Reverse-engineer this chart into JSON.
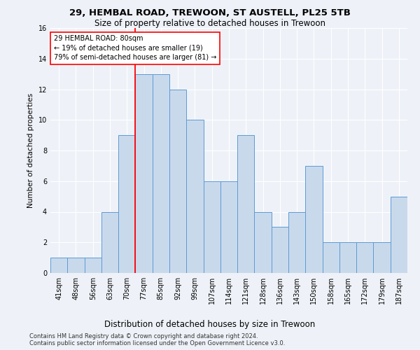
{
  "title1": "29, HEMBAL ROAD, TREWOON, ST AUSTELL, PL25 5TB",
  "title2": "Size of property relative to detached houses in Trewoon",
  "xlabel": "Distribution of detached houses by size in Trewoon",
  "ylabel": "Number of detached properties",
  "categories": [
    "41sqm",
    "48sqm",
    "56sqm",
    "63sqm",
    "70sqm",
    "77sqm",
    "85sqm",
    "92sqm",
    "99sqm",
    "107sqm",
    "114sqm",
    "121sqm",
    "128sqm",
    "136sqm",
    "143sqm",
    "150sqm",
    "158sqm",
    "165sqm",
    "172sqm",
    "179sqm",
    "187sqm"
  ],
  "values": [
    1,
    1,
    1,
    4,
    9,
    13,
    13,
    12,
    10,
    6,
    6,
    9,
    4,
    3,
    4,
    7,
    2,
    2,
    2,
    2,
    5
  ],
  "bar_color": "#c9d9ec",
  "bar_edgecolor": "#5b9bd5",
  "annotation_title": "29 HEMBAL ROAD: 80sqm",
  "annotation_line1": "← 19% of detached houses are smaller (19)",
  "annotation_line2": "79% of semi-detached houses are larger (81) →",
  "vline_x_index": 5,
  "ylim": [
    0,
    16
  ],
  "yticks": [
    0,
    2,
    4,
    6,
    8,
    10,
    12,
    14,
    16
  ],
  "footnote1": "Contains HM Land Registry data © Crown copyright and database right 2024.",
  "footnote2": "Contains public sector information licensed under the Open Government Licence v3.0.",
  "background_color": "#eef2f8",
  "plot_bg_color": "#eef2f8",
  "title1_fontsize": 9.5,
  "title2_fontsize": 8.5,
  "xlabel_fontsize": 8.5,
  "ylabel_fontsize": 7.5,
  "tick_fontsize": 7,
  "footnote_fontsize": 6
}
